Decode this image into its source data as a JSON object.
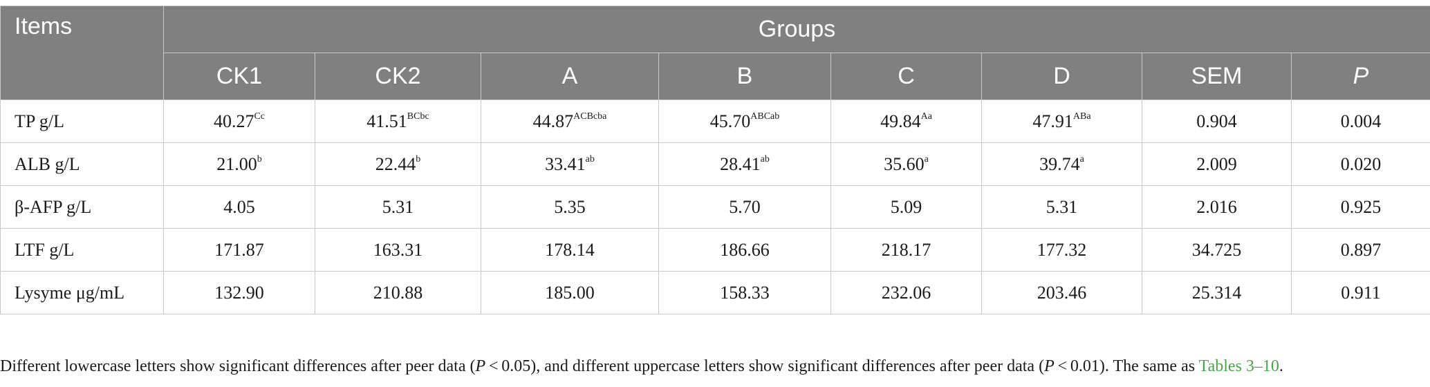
{
  "table": {
    "items_header": "Items",
    "groups_header": "Groups",
    "columns": [
      "CK1",
      "CK2",
      "A",
      "B",
      "C",
      "D",
      "SEM",
      "P"
    ],
    "rows": [
      {
        "label": "TP g/L",
        "cells": [
          {
            "v": "40.27",
            "s": "Cc"
          },
          {
            "v": "41.51",
            "s": "BCbc"
          },
          {
            "v": "44.87",
            "s": "ACBcba"
          },
          {
            "v": "45.70",
            "s": "ABCab"
          },
          {
            "v": "49.84",
            "s": "Aa"
          },
          {
            "v": "47.91",
            "s": "ABa"
          },
          {
            "v": "0.904",
            "s": ""
          },
          {
            "v": "0.004",
            "s": ""
          }
        ]
      },
      {
        "label": "ALB g/L",
        "cells": [
          {
            "v": "21.00",
            "s": "b"
          },
          {
            "v": "22.44",
            "s": "b"
          },
          {
            "v": "33.41",
            "s": "ab"
          },
          {
            "v": "28.41",
            "s": "ab"
          },
          {
            "v": "35.60",
            "s": "a"
          },
          {
            "v": "39.74",
            "s": "a"
          },
          {
            "v": "2.009",
            "s": ""
          },
          {
            "v": "0.020",
            "s": ""
          }
        ]
      },
      {
        "label": "β-AFP g/L",
        "cells": [
          {
            "v": "4.05",
            "s": ""
          },
          {
            "v": "5.31",
            "s": ""
          },
          {
            "v": "5.35",
            "s": ""
          },
          {
            "v": "5.70",
            "s": ""
          },
          {
            "v": "5.09",
            "s": ""
          },
          {
            "v": "5.31",
            "s": ""
          },
          {
            "v": "2.016",
            "s": ""
          },
          {
            "v": "0.925",
            "s": ""
          }
        ]
      },
      {
        "label": "LTF g/L",
        "cells": [
          {
            "v": "171.87",
            "s": ""
          },
          {
            "v": "163.31",
            "s": ""
          },
          {
            "v": "178.14",
            "s": ""
          },
          {
            "v": "186.66",
            "s": ""
          },
          {
            "v": "218.17",
            "s": ""
          },
          {
            "v": "177.32",
            "s": ""
          },
          {
            "v": "34.725",
            "s": ""
          },
          {
            "v": "0.897",
            "s": ""
          }
        ]
      },
      {
        "label": "Lysyme μg/mL",
        "cells": [
          {
            "v": "132.90",
            "s": ""
          },
          {
            "v": "210.88",
            "s": ""
          },
          {
            "v": "185.00",
            "s": ""
          },
          {
            "v": "158.33",
            "s": ""
          },
          {
            "v": "232.06",
            "s": ""
          },
          {
            "v": "203.46",
            "s": ""
          },
          {
            "v": "25.314",
            "s": ""
          },
          {
            "v": "0.911",
            "s": ""
          }
        ]
      }
    ]
  },
  "footnote": {
    "part1": "Different lowercase letters show significant differences after peer data (",
    "p1": "P",
    "part2": " < 0.05), and different uppercase letters show significant differences after peer data (",
    "p2": "P",
    "part3": " < 0.01). The same as ",
    "link": "Tables 3–10",
    "part4": "."
  },
  "colors": {
    "header_bg": "#808080",
    "header_text": "#ffffff",
    "border": "#c8c8c8",
    "link": "#4aa34a"
  }
}
